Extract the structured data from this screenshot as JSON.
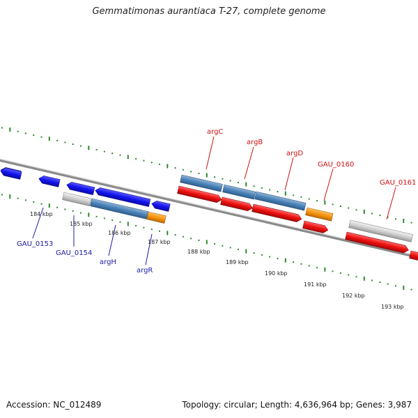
{
  "title": "Gemmatimonas aurantiaca T-27, complete genome",
  "footer": {
    "accession": "Accession: NC_012489",
    "summary": "Topology: circular; Length: 4,636,964 bp; Genes: 3,987"
  },
  "colors": {
    "backbone": "#8a8a8a",
    "tick": "#2a8a2a",
    "label_minus": "#1a1aa8",
    "label_plus": "#cc1111",
    "kbp_text": "#222222"
  },
  "scale_labels": [
    "184 kbp",
    "185 kbp",
    "186 kbp",
    "187 kbp",
    "188 kbp",
    "189 kbp",
    "190 kbp",
    "191 kbp",
    "192 kbp",
    "193 kbp"
  ],
  "gene_labels_minus": [
    "GAU_0153",
    "GAU_0154",
    "argH",
    "argR"
  ],
  "gene_labels_plus": [
    "argC",
    "argB",
    "argD",
    "GAU_0160",
    "GAU_0161"
  ]
}
